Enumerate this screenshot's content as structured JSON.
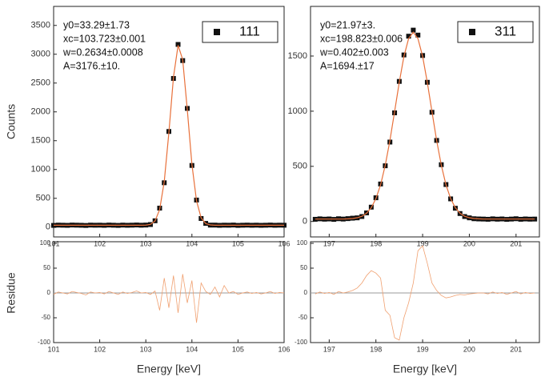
{
  "chart_data": [
    {
      "type": "scatter",
      "ylabel": "Counts",
      "annotations": [
        "y0=33.29±1.73",
        "xc=103.723±0.001",
        "w=0.2634±0.0008",
        "A=3176.±10."
      ],
      "xlim": [
        101,
        106
      ],
      "xticks": [
        101,
        102,
        103,
        104,
        105,
        106
      ],
      "ylim": [
        -170,
        3830
      ],
      "yticks": [
        0,
        500,
        1000,
        1500,
        2000,
        2500,
        3000,
        3500
      ],
      "series": [
        {
          "name": "111",
          "color": "#111111",
          "marker": "square",
          "x": [
            101.0,
            101.1,
            101.2,
            101.3,
            101.4,
            101.5,
            101.6,
            101.7,
            101.8,
            101.9,
            102.0,
            102.1,
            102.2,
            102.3,
            102.4,
            102.5,
            102.6,
            102.7,
            102.8,
            102.9,
            103.0,
            103.1,
            103.2,
            103.3,
            103.4,
            103.5,
            103.6,
            103.7,
            103.8,
            103.9,
            104.0,
            104.1,
            104.2,
            104.3,
            104.4,
            104.5,
            104.6,
            104.7,
            104.8,
            104.9,
            105.0,
            105.1,
            105.2,
            105.3,
            105.4,
            105.5,
            105.6,
            105.7,
            105.8,
            105.9,
            106.0
          ],
          "values": [
            30,
            35,
            33,
            31,
            36,
            34,
            32,
            29,
            35,
            33,
            34,
            31,
            36,
            33,
            30,
            35,
            32,
            34,
            37,
            33,
            36,
            45,
            110,
            330,
            770,
            1660,
            2580,
            3170,
            2890,
            2060,
            1070,
            470,
            150,
            65,
            35,
            35,
            31,
            34,
            33,
            36,
            30,
            33,
            35,
            32,
            34,
            31,
            33,
            36,
            32,
            34,
            33
          ]
        },
        {
          "color": "#e8703a",
          "marker": "line",
          "x": [
            101.0,
            101.1,
            101.2,
            101.3,
            101.4,
            101.5,
            101.6,
            101.7,
            101.8,
            101.9,
            102.0,
            102.1,
            102.2,
            102.3,
            102.4,
            102.5,
            102.6,
            102.7,
            102.8,
            102.9,
            103.0,
            103.1,
            103.2,
            103.3,
            103.4,
            103.5,
            103.6,
            103.7,
            103.8,
            103.9,
            104.0,
            104.1,
            104.2,
            104.3,
            104.4,
            104.5,
            104.6,
            104.7,
            104.8,
            104.9,
            105.0,
            105.1,
            105.2,
            105.3,
            105.4,
            105.5,
            105.6,
            105.7,
            105.8,
            105.9,
            106.0
          ],
          "values": [
            33,
            33,
            33,
            33,
            33,
            33,
            33,
            33,
            33,
            33,
            33,
            33,
            33,
            33,
            33,
            33,
            33,
            33,
            33,
            33,
            35,
            48,
            106,
            304,
            791,
            1636,
            2604,
            3156,
            2907,
            2036,
            1090,
            456,
            161,
            62,
            38,
            33,
            33,
            33,
            33,
            33,
            33,
            33,
            33,
            33,
            33,
            33,
            33,
            33,
            33,
            33,
            33
          ]
        }
      ]
    },
    {
      "type": "scatter",
      "annotations": [
        "y0=21.97±3.",
        "xc=198.823±0.006",
        "w=0.402±0.003",
        "A=1694.±17"
      ],
      "xlim": [
        196.6,
        201.5
      ],
      "xticks": [
        197,
        198,
        199,
        200,
        201
      ],
      "ylim": [
        -140,
        1950
      ],
      "yticks": [
        0,
        500,
        1000,
        1500
      ],
      "series": [
        {
          "name": "311",
          "color": "#111111",
          "marker": "square",
          "x": [
            196.7,
            196.8,
            196.9,
            197.0,
            197.1,
            197.2,
            197.3,
            197.4,
            197.5,
            197.6,
            197.7,
            197.8,
            197.9,
            198.0,
            198.1,
            198.2,
            198.3,
            198.4,
            198.5,
            198.6,
            198.7,
            198.8,
            198.9,
            199.0,
            199.1,
            199.2,
            199.3,
            199.4,
            199.5,
            199.6,
            199.7,
            199.8,
            199.9,
            200.0,
            200.1,
            200.2,
            200.3,
            200.4,
            200.5,
            200.6,
            200.7,
            200.8,
            200.9,
            201.0,
            201.1,
            201.2,
            201.3,
            201.4
          ],
          "values": [
            20,
            24,
            21,
            23,
            19,
            25,
            22,
            26,
            30,
            33,
            45,
            78,
            130,
            215,
            340,
            505,
            720,
            985,
            1270,
            1510,
            1680,
            1735,
            1690,
            1505,
            1262,
            990,
            735,
            515,
            335,
            205,
            120,
            72,
            45,
            33,
            25,
            23,
            22,
            20,
            24,
            21,
            23,
            19,
            22,
            25,
            20,
            23,
            21,
            22
          ]
        },
        {
          "color": "#e8703a",
          "marker": "line",
          "x": [
            196.7,
            196.8,
            196.9,
            197.0,
            197.1,
            197.2,
            197.3,
            197.4,
            197.5,
            197.6,
            197.7,
            197.8,
            197.9,
            198.0,
            198.1,
            198.2,
            198.3,
            198.4,
            198.5,
            198.6,
            198.7,
            198.8,
            198.9,
            199.0,
            199.1,
            199.2,
            199.3,
            199.4,
            199.5,
            199.6,
            199.7,
            199.8,
            199.9,
            200.0,
            200.1,
            200.2,
            200.3,
            200.4,
            200.5,
            200.6,
            200.7,
            200.8,
            200.9,
            201.0,
            201.1,
            201.2,
            201.3,
            201.4
          ],
          "values": [
            22,
            22,
            22,
            22,
            22,
            22,
            22,
            24,
            27,
            34,
            47,
            75,
            125,
            207,
            332,
            510,
            735,
            996,
            1262,
            1497,
            1658,
            1716,
            1658,
            1497,
            1262,
            996,
            735,
            510,
            332,
            207,
            125,
            75,
            47,
            34,
            27,
            24,
            22,
            22,
            22,
            22,
            22,
            22,
            22,
            22,
            22,
            22,
            22,
            22
          ]
        }
      ]
    },
    {
      "type": "line",
      "ylabel": "Residue",
      "xlabel": "Energy [keV]",
      "xlim": [
        101,
        106
      ],
      "xticks": [
        101,
        102,
        103,
        104,
        105,
        106
      ],
      "ylim": [
        -100,
        100
      ],
      "yticks": [
        100,
        50,
        0,
        -50,
        -100
      ],
      "series": [
        {
          "color": "#f0a070",
          "x": [
            101.0,
            101.1,
            101.2,
            101.3,
            101.4,
            101.5,
            101.6,
            101.7,
            101.8,
            101.9,
            102.0,
            102.1,
            102.2,
            102.3,
            102.4,
            102.5,
            102.6,
            102.7,
            102.8,
            102.9,
            103.0,
            103.1,
            103.2,
            103.3,
            103.4,
            103.5,
            103.6,
            103.7,
            103.8,
            103.9,
            104.0,
            104.1,
            104.2,
            104.3,
            104.4,
            104.5,
            104.6,
            104.7,
            104.8,
            104.9,
            105.0,
            105.1,
            105.2,
            105.3,
            105.4,
            105.5,
            105.6,
            105.7,
            105.8,
            105.9,
            106.0
          ],
          "values": [
            -3,
            2,
            0,
            -2,
            3,
            1,
            -1,
            -4,
            2,
            0,
            1,
            -2,
            3,
            0,
            -3,
            2,
            -1,
            1,
            4,
            0,
            1,
            -3,
            4,
            -35,
            30,
            -30,
            35,
            -40,
            38,
            -20,
            25,
            -60,
            20,
            3,
            -3,
            12,
            -8,
            15,
            0,
            3,
            -3,
            0,
            2,
            -1,
            1,
            -2,
            0,
            3,
            -1,
            1,
            0
          ]
        }
      ]
    },
    {
      "type": "line",
      "xlabel": "Energy [keV]",
      "xlim": [
        196.6,
        201.5
      ],
      "xticks": [
        197,
        198,
        199,
        200,
        201
      ],
      "ylim": [
        -100,
        100
      ],
      "yticks": [
        100,
        50,
        0,
        -50,
        -100
      ],
      "series": [
        {
          "color": "#f0a070",
          "x": [
            196.7,
            196.8,
            196.9,
            197.0,
            197.1,
            197.2,
            197.3,
            197.4,
            197.5,
            197.6,
            197.7,
            197.8,
            197.9,
            198.0,
            198.1,
            198.2,
            198.3,
            198.4,
            198.5,
            198.6,
            198.7,
            198.8,
            198.9,
            199.0,
            199.1,
            199.2,
            199.3,
            199.4,
            199.5,
            199.6,
            199.7,
            199.8,
            199.9,
            200.0,
            200.1,
            200.2,
            200.3,
            200.4,
            200.5,
            200.6,
            200.7,
            200.8,
            200.9,
            201.0,
            201.1,
            201.2,
            201.3,
            201.4
          ],
          "values": [
            -2,
            2,
            -1,
            1,
            -3,
            3,
            0,
            2,
            5,
            10,
            20,
            35,
            45,
            40,
            30,
            -35,
            -45,
            -90,
            -95,
            -50,
            -20,
            20,
            85,
            95,
            60,
            20,
            5,
            -5,
            -10,
            -8,
            -5,
            -3,
            -4,
            -2,
            -1,
            0,
            0,
            -2,
            2,
            -1,
            1,
            -3,
            0,
            3,
            -2,
            1,
            -1,
            0
          ]
        }
      ]
    }
  ]
}
